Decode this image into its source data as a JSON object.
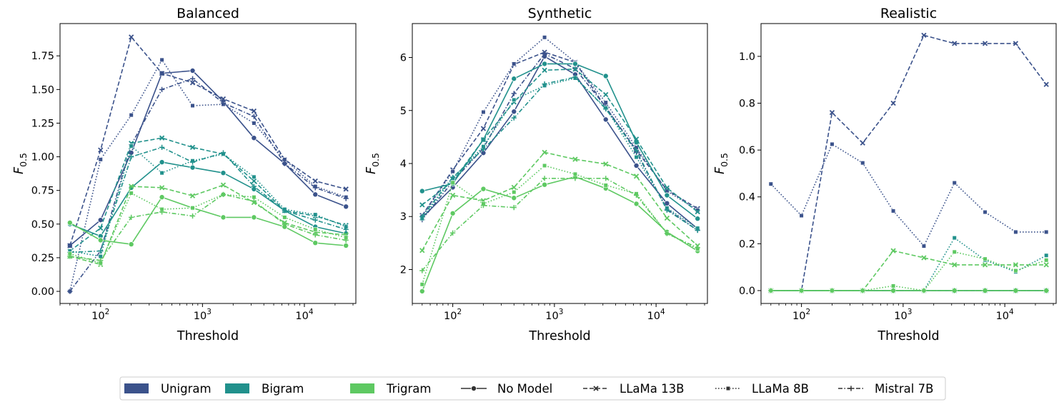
{
  "legend": {
    "items": [
      {
        "label": "Unigram",
        "kind": "patch",
        "color": "#3b528b"
      },
      {
        "label": "Bigram",
        "kind": "patch",
        "color": "#21918c"
      },
      {
        "label": "Trigram",
        "kind": "patch",
        "color": "#5ec962"
      },
      {
        "label": "No Model",
        "kind": "line",
        "dash": "solid",
        "marker": "circle"
      },
      {
        "label": "LLaMa 13B",
        "kind": "line",
        "dash": "dashed",
        "marker": "x"
      },
      {
        "label": "LLaMa 8B",
        "kind": "line",
        "dash": "dotted",
        "marker": "square"
      },
      {
        "label": "Mistral 7B",
        "kind": "line",
        "dash": "dashdot",
        "marker": "plus"
      }
    ]
  },
  "chart_data": [
    {
      "type": "line",
      "title": "Balanced",
      "xlabel": "Threshold",
      "ylabel": "F0.5",
      "xscale": "log",
      "xlim": [
        40,
        32000
      ],
      "ylim": [
        -0.09,
        1.99
      ],
      "yticks": [
        "0.00",
        "0.25",
        "0.50",
        "0.75",
        "1.00",
        "1.25",
        "1.50",
        "1.75"
      ],
      "ytick_values": [
        0,
        0.25,
        0.5,
        0.75,
        1.0,
        1.25,
        1.5,
        1.75
      ],
      "xticks": [
        100,
        1000,
        10000
      ],
      "x": [
        50,
        100,
        200,
        400,
        800,
        1600,
        3200,
        6400,
        12800,
        25600
      ],
      "series": [
        {
          "group": "Unigram",
          "model": "No Model",
          "values": [
            0.34,
            0.53,
            1.03,
            1.62,
            1.64,
            1.41,
            1.14,
            0.95,
            0.72,
            0.63
          ]
        },
        {
          "group": "Unigram",
          "model": "LLaMa 13B",
          "values": [
            0.34,
            1.05,
            1.89,
            1.62,
            1.55,
            1.43,
            1.34,
            0.98,
            0.82,
            0.76
          ]
        },
        {
          "group": "Unigram",
          "model": "LLaMa 8B",
          "values": [
            0.0,
            0.98,
            1.31,
            1.72,
            1.38,
            1.39,
            1.25,
            0.98,
            0.78,
            0.7
          ]
        },
        {
          "group": "Unigram",
          "model": "Mistral 7B",
          "values": [
            0.0,
            0.3,
            1.09,
            1.5,
            1.58,
            1.4,
            1.3,
            0.95,
            0.77,
            0.69
          ]
        },
        {
          "group": "Bigram",
          "model": "No Model",
          "values": [
            0.5,
            0.41,
            0.77,
            0.96,
            0.92,
            0.88,
            0.76,
            0.6,
            0.48,
            0.43
          ]
        },
        {
          "group": "Bigram",
          "model": "LLaMa 13B",
          "values": [
            0.3,
            0.47,
            1.1,
            1.14,
            1.07,
            1.02,
            0.82,
            0.6,
            0.56,
            0.49
          ]
        },
        {
          "group": "Bigram",
          "model": "LLaMa 8B",
          "values": [
            0.3,
            0.26,
            1.08,
            0.88,
            0.97,
            1.02,
            0.85,
            0.61,
            0.57,
            0.48
          ]
        },
        {
          "group": "Bigram",
          "model": "Mistral 7B",
          "values": [
            0.29,
            0.3,
            1.0,
            1.07,
            0.96,
            1.03,
            0.78,
            0.6,
            0.53,
            0.46
          ]
        },
        {
          "group": "Trigram",
          "model": "No Model",
          "values": [
            0.51,
            0.38,
            0.35,
            0.7,
            0.62,
            0.55,
            0.55,
            0.48,
            0.36,
            0.34
          ]
        },
        {
          "group": "Trigram",
          "model": "LLaMa 13B",
          "values": [
            0.26,
            0.2,
            0.78,
            0.77,
            0.71,
            0.79,
            0.66,
            0.51,
            0.44,
            0.42
          ]
        },
        {
          "group": "Trigram",
          "model": "LLaMa 8B",
          "values": [
            0.28,
            0.21,
            0.73,
            0.61,
            0.62,
            0.72,
            0.7,
            0.55,
            0.46,
            0.4
          ]
        },
        {
          "group": "Trigram",
          "model": "Mistral 7B",
          "values": [
            0.26,
            0.23,
            0.55,
            0.59,
            0.56,
            0.72,
            0.67,
            0.5,
            0.42,
            0.38
          ]
        }
      ]
    },
    {
      "type": "line",
      "title": "Synthetic",
      "xlabel": "Threshold",
      "ylabel": "F0.5",
      "xscale": "log",
      "xlim": [
        40,
        32000
      ],
      "ylim": [
        1.36,
        6.64
      ],
      "yticks": [
        "2",
        "3",
        "4",
        "5",
        "6"
      ],
      "ytick_values": [
        2,
        3,
        4,
        5,
        6
      ],
      "xticks": [
        100,
        1000,
        10000
      ],
      "x": [
        50,
        100,
        200,
        400,
        800,
        1600,
        3200,
        6400,
        12800,
        25600
      ],
      "series": [
        {
          "group": "Unigram",
          "model": "No Model",
          "values": [
            2.98,
            3.55,
            4.2,
            4.98,
            6.02,
            5.68,
            4.83,
            3.96,
            3.25,
            2.77
          ]
        },
        {
          "group": "Unigram",
          "model": "LLaMa 13B",
          "values": [
            3.02,
            3.88,
            4.66,
            5.87,
            6.1,
            5.91,
            5.06,
            4.25,
            3.5,
            3.15
          ]
        },
        {
          "group": "Unigram",
          "model": "LLaMa 8B",
          "values": [
            3.0,
            3.85,
            4.97,
            5.88,
            6.38,
            5.91,
            5.15,
            4.3,
            3.48,
            3.12
          ]
        },
        {
          "group": "Unigram",
          "model": "Mistral 7B",
          "values": [
            2.94,
            3.66,
            4.29,
            5.32,
            6.07,
            5.79,
            5.07,
            4.21,
            3.14,
            2.74
          ]
        },
        {
          "group": "Bigram",
          "model": "No Model",
          "values": [
            3.48,
            3.62,
            4.45,
            5.6,
            5.88,
            5.88,
            5.65,
            4.4,
            3.4,
            2.96
          ]
        },
        {
          "group": "Bigram",
          "model": "LLaMa 13B",
          "values": [
            3.22,
            3.66,
            4.45,
            5.16,
            5.76,
            5.78,
            5.3,
            4.46,
            3.54,
            3.09
          ]
        },
        {
          "group": "Bigram",
          "model": "LLaMa 8B",
          "values": [
            2.96,
            3.72,
            4.32,
            5.2,
            5.47,
            5.61,
            5.05,
            4.12,
            3.16,
            2.78
          ]
        },
        {
          "group": "Bigram",
          "model": "Mistral 7B",
          "values": [
            3.0,
            3.74,
            4.27,
            4.86,
            5.5,
            5.63,
            5.03,
            4.24,
            3.12,
            2.74
          ]
        },
        {
          "group": "Trigram",
          "model": "No Model",
          "values": [
            1.59,
            3.06,
            3.52,
            3.35,
            3.6,
            3.75,
            3.53,
            3.24,
            2.71,
            2.35
          ]
        },
        {
          "group": "Trigram",
          "model": "LLaMa 13B",
          "values": [
            2.36,
            3.4,
            3.3,
            3.55,
            4.21,
            4.08,
            3.99,
            3.76,
            2.97,
            2.45
          ]
        },
        {
          "group": "Trigram",
          "model": "LLaMa 8B",
          "values": [
            1.72,
            3.64,
            3.24,
            3.46,
            3.96,
            3.8,
            3.59,
            3.43,
            2.68,
            2.39
          ]
        },
        {
          "group": "Trigram",
          "model": "Mistral 7B",
          "values": [
            1.98,
            2.69,
            3.21,
            3.17,
            3.72,
            3.72,
            3.72,
            3.4,
            2.68,
            2.41
          ]
        }
      ]
    },
    {
      "type": "line",
      "title": "Realistic",
      "xlabel": "Threshold",
      "ylabel": "F0.5",
      "xscale": "log",
      "xlim": [
        40,
        32000
      ],
      "ylim": [
        -0.055,
        1.14
      ],
      "yticks": [
        "0.0",
        "0.2",
        "0.4",
        "0.6",
        "0.8",
        "1.0"
      ],
      "ytick_values": [
        0,
        0.2,
        0.4,
        0.6,
        0.8,
        1.0
      ],
      "xticks": [
        100,
        1000,
        10000
      ],
      "x": [
        50,
        100,
        200,
        400,
        800,
        1600,
        3200,
        6400,
        12800,
        25600
      ],
      "series": [
        {
          "group": "Unigram",
          "model": "No Model",
          "values": [
            0,
            0,
            0,
            0,
            0,
            0,
            0,
            0,
            0,
            0
          ]
        },
        {
          "group": "Unigram",
          "model": "LLaMa 13B",
          "values": [
            0,
            0,
            0.76,
            0.63,
            0.8,
            1.09,
            1.055,
            1.055,
            1.055,
            0.88
          ]
        },
        {
          "group": "Unigram",
          "model": "LLaMa 8B",
          "values": [
            0.455,
            0.32,
            0.625,
            0.545,
            0.34,
            0.19,
            0.46,
            0.335,
            0.25,
            0.25
          ]
        },
        {
          "group": "Unigram",
          "model": "Mistral 7B",
          "values": [
            0,
            0,
            0,
            0,
            0,
            0,
            0,
            0,
            0,
            0
          ]
        },
        {
          "group": "Bigram",
          "model": "No Model",
          "values": [
            0,
            0,
            0,
            0,
            0,
            0,
            0,
            0,
            0,
            0
          ]
        },
        {
          "group": "Bigram",
          "model": "LLaMa 13B",
          "values": [
            0,
            0,
            0,
            0,
            0,
            0,
            0,
            0,
            0,
            0
          ]
        },
        {
          "group": "Bigram",
          "model": "LLaMa 8B",
          "values": [
            0,
            0,
            0,
            0,
            0,
            0,
            0.225,
            0.13,
            0.08,
            0.15
          ]
        },
        {
          "group": "Bigram",
          "model": "Mistral 7B",
          "values": [
            0,
            0,
            0,
            0,
            0,
            0,
            0,
            0,
            0,
            0
          ]
        },
        {
          "group": "Trigram",
          "model": "No Model",
          "values": [
            0,
            0,
            0,
            0,
            0,
            0,
            0,
            0,
            0,
            0
          ]
        },
        {
          "group": "Trigram",
          "model": "LLaMa 13B",
          "values": [
            0,
            0,
            0,
            0,
            0.17,
            0.14,
            0.11,
            0.11,
            0.11,
            0.11
          ]
        },
        {
          "group": "Trigram",
          "model": "LLaMa 8B",
          "values": [
            0,
            0,
            0,
            0,
            0.02,
            0,
            0.165,
            0.135,
            0.085,
            0.13
          ]
        },
        {
          "group": "Trigram",
          "model": "Mistral 7B",
          "values": [
            0,
            0,
            0,
            0,
            0,
            0,
            0,
            0,
            0,
            0
          ]
        }
      ]
    }
  ]
}
